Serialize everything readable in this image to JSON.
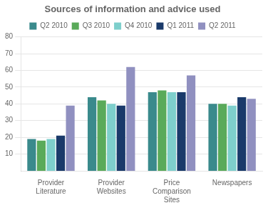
{
  "chart_data": {
    "type": "bar",
    "title": "Sources of information and advice used",
    "categories": [
      "Provider\nLiterature",
      "Provider\nWebsites",
      "Price\nComparison\nSites",
      "Newspapers"
    ],
    "series": [
      {
        "name": "Q2 2010",
        "color": "#3a8a8c",
        "values": [
          19,
          44,
          47,
          40
        ]
      },
      {
        "name": "Q3 2010",
        "color": "#5aaa5a",
        "values": [
          18,
          42,
          48,
          40
        ]
      },
      {
        "name": "Q4 2010",
        "color": "#7ecfcc",
        "values": [
          19,
          40,
          47,
          39
        ]
      },
      {
        "name": "Q1 2011",
        "color": "#1a3a6a",
        "values": [
          21,
          39,
          47,
          44
        ]
      },
      {
        "name": "Q2 2011",
        "color": "#9090c0",
        "values": [
          39,
          62,
          57,
          43
        ]
      }
    ],
    "ylim": [
      0,
      80
    ],
    "yticks": [
      10,
      20,
      30,
      40,
      50,
      60,
      70,
      80
    ],
    "grid": true,
    "legend": "top"
  }
}
